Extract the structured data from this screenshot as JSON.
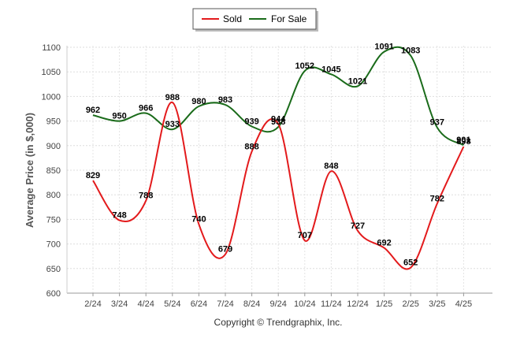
{
  "chart_data": {
    "type": "line",
    "categories": [
      "2/24",
      "3/24",
      "4/24",
      "5/24",
      "6/24",
      "7/24",
      "8/24",
      "9/24",
      "10/24",
      "11/24",
      "12/24",
      "1/25",
      "2/25",
      "3/25",
      "4/25"
    ],
    "series": [
      {
        "name": "Sold",
        "color": "#e31a1c",
        "values": [
          829,
          748,
          788,
          988,
          740,
          679,
          888,
          944,
          707,
          848,
          727,
          692,
          652,
          782,
          898
        ],
        "labels": [
          "829",
          "748",
          "788",
          "988",
          "740",
          "679",
          "888",
          "944",
          "707",
          "848",
          "727",
          "692",
          "652",
          "782",
          "898"
        ]
      },
      {
        "name": "For Sale",
        "color": "#1a6b1a",
        "values": [
          962,
          950,
          966,
          933,
          980,
          983,
          939,
          938,
          1052,
          1045,
          1021,
          1091,
          1083,
          937,
          901
        ],
        "labels": [
          "962",
          "950",
          "966",
          "933",
          "980",
          "983",
          "939",
          "938",
          "1052",
          "1045",
          "1021",
          "1091",
          "1083",
          "937",
          "901"
        ]
      }
    ],
    "ylabel": "Average Price (in $,000)",
    "xlabel": "",
    "ylim": [
      600,
      1100
    ],
    "yticks": [
      600,
      650,
      700,
      750,
      800,
      850,
      900,
      950,
      1000,
      1050,
      1100
    ],
    "grid": true,
    "legend_position": "top-center",
    "footer": "Copyright © Trendgraphix, Inc."
  }
}
